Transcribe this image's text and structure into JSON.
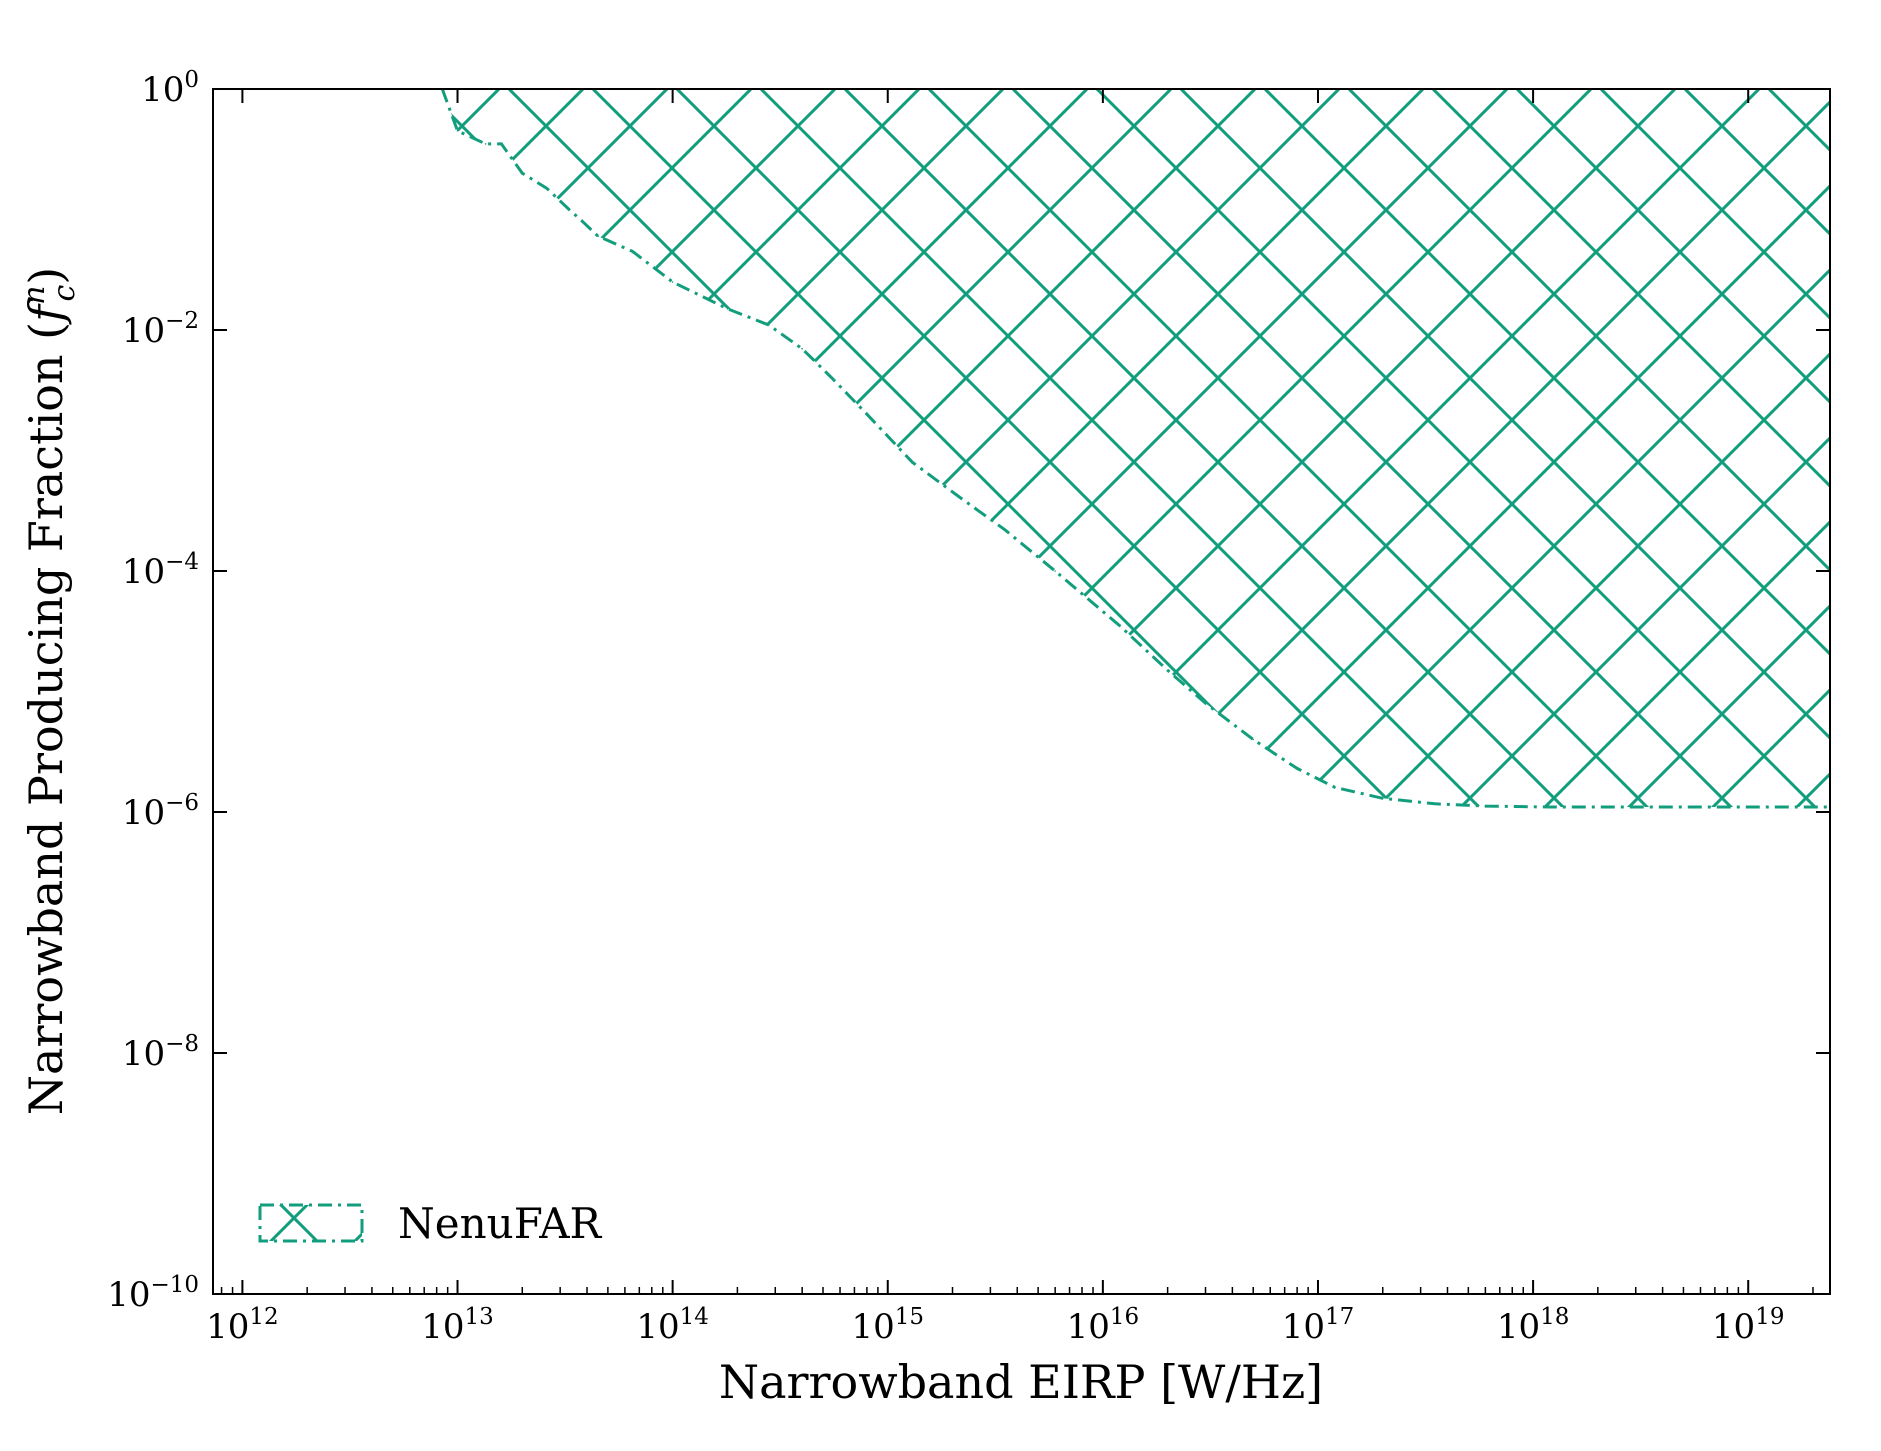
{
  "chart_data": {
    "type": "area",
    "title": "",
    "xlabel": "Narrowband EIRP [W/Hz]",
    "ylabel": "Narrowband Producing Fraction (",
    "ylabel_math": "f",
    "ylabel_sup": "n",
    "ylabel_sub": "c",
    "ylabel_close": ")",
    "xscale": "log",
    "yscale": "log",
    "xlim": [
      730000000000.0,
      2.4e+19
    ],
    "ylim": [
      1e-10,
      1
    ],
    "grid": false,
    "legend_position": "lower-left",
    "x_ticks": [
      {
        "base": "10",
        "exp": "12",
        "value": 1000000000000.0
      },
      {
        "base": "10",
        "exp": "13",
        "value": 10000000000000.0
      },
      {
        "base": "10",
        "exp": "14",
        "value": 100000000000000.0
      },
      {
        "base": "10",
        "exp": "15",
        "value": 1000000000000000.0
      },
      {
        "base": "10",
        "exp": "16",
        "value": 1e+16
      },
      {
        "base": "10",
        "exp": "17",
        "value": 1e+17
      },
      {
        "base": "10",
        "exp": "18",
        "value": 1e+18
      },
      {
        "base": "10",
        "exp": "19",
        "value": 1e+19
      }
    ],
    "y_ticks": [
      {
        "base": "10",
        "exp": "0",
        "value": 1
      },
      {
        "base": "10",
        "exp": "−2",
        "value": 0.01
      },
      {
        "base": "10",
        "exp": "−4",
        "value": 0.0001
      },
      {
        "base": "10",
        "exp": "−6",
        "value": 1e-06
      },
      {
        "base": "10",
        "exp": "−8",
        "value": 1e-08
      },
      {
        "base": "10",
        "exp": "−10",
        "value": 1e-10
      }
    ],
    "series": [
      {
        "name": "NenuFAR",
        "color": "#129e7d",
        "style": "dash-dot boundary, cross-hatched excluded region above",
        "x": [
          8500000000000.0,
          10000000000000.0,
          13500000000000.0,
          16000000000000.0,
          20000000000000.0,
          26000000000000.0,
          33000000000000.0,
          38000000000000.0,
          45000000000000.0,
          65000000000000.0,
          100000000000000.0,
          180000000000000.0,
          280000000000000.0,
          400000000000000.0,
          550000000000000.0,
          800000000000000.0,
          1300000000000000.0,
          2200000000000000.0,
          3500000000000000.0,
          6000000000000000.0,
          1.2e+16,
          2e+16,
          3e+16,
          5e+16,
          8e+16,
          1.2e+17,
          2e+17,
          3.5e+17,
          6e+17,
          1.2e+18,
          3e+18,
          8e+18,
          2.4e+19
        ],
        "y": [
          1.0,
          0.45,
          0.35,
          0.35,
          0.2,
          0.15,
          0.1,
          0.08,
          0.06,
          0.045,
          0.025,
          0.015,
          0.011,
          0.007,
          0.004,
          0.002,
          0.0008,
          0.0004,
          0.00022,
          0.0001,
          3.5e-05,
          1.5e-05,
          8e-06,
          4e-06,
          2.3e-06,
          1.6e-06,
          1.3e-06,
          1.17e-06,
          1.12e-06,
          1.1e-06,
          1.1e-06,
          1.1e-06,
          1.1e-06
        ]
      }
    ]
  }
}
